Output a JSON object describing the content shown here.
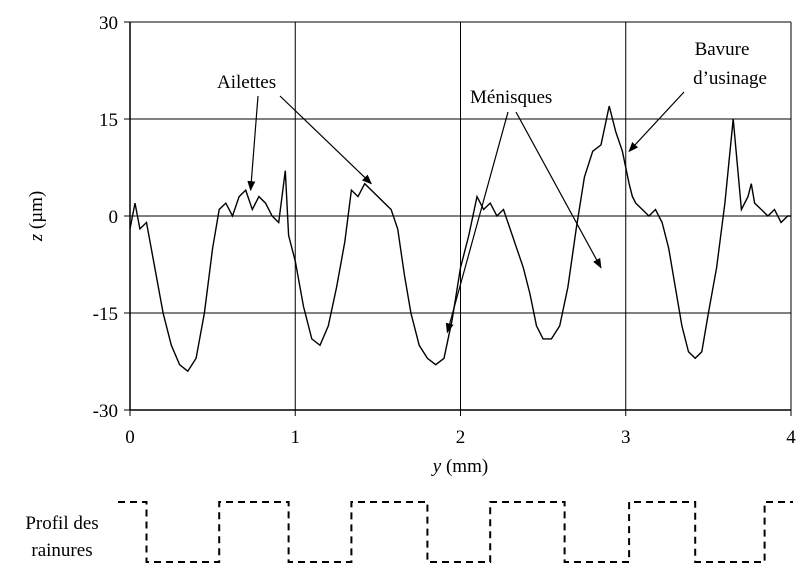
{
  "chart_data": {
    "type": "line",
    "xlabel_var": "y",
    "xlabel_unit": " (mm)",
    "ylabel_var": "z",
    "ylabel_unit": " (µm)",
    "xlim": [
      0,
      4
    ],
    "ylim": [
      -30,
      30
    ],
    "x_ticks": [
      0,
      1,
      2,
      3,
      4
    ],
    "y_ticks": [
      30,
      15,
      0,
      -15,
      -30
    ],
    "grid": true,
    "series": [
      {
        "x": [
          0.0,
          0.03,
          0.06,
          0.1,
          0.15,
          0.2,
          0.25,
          0.3,
          0.35,
          0.4,
          0.45,
          0.5,
          0.54,
          0.58,
          0.62,
          0.66,
          0.7,
          0.74,
          0.78,
          0.82,
          0.86,
          0.9,
          0.94,
          0.96,
          1.0,
          1.05,
          1.1,
          1.15,
          1.2,
          1.25,
          1.3,
          1.34,
          1.38,
          1.42,
          1.46,
          1.5,
          1.54,
          1.58,
          1.62,
          1.66,
          1.7,
          1.75,
          1.8,
          1.85,
          1.9,
          1.95,
          2.0,
          2.05,
          2.1,
          2.14,
          2.18,
          2.22,
          2.26,
          2.3,
          2.34,
          2.38,
          2.42,
          2.46,
          2.5,
          2.55,
          2.6,
          2.65,
          2.7,
          2.75,
          2.8,
          2.85,
          2.9,
          2.94,
          2.98,
          3.02,
          3.04,
          3.06,
          3.1,
          3.14,
          3.18,
          3.22,
          3.26,
          3.3,
          3.34,
          3.38,
          3.42,
          3.46,
          3.5,
          3.55,
          3.6,
          3.65,
          3.7,
          3.74,
          3.76,
          3.78,
          3.82,
          3.86,
          3.9,
          3.94,
          3.98,
          4.0
        ],
        "y": [
          -2,
          2,
          -2,
          -1,
          -8,
          -15,
          -20,
          -23,
          -24,
          -22,
          -15,
          -5,
          1,
          2,
          0,
          3,
          4,
          1,
          3,
          2,
          0,
          -1,
          7,
          -3,
          -7,
          -14,
          -19,
          -20,
          -17,
          -11,
          -4,
          4,
          3,
          5,
          4,
          3,
          2,
          1,
          -2,
          -9,
          -15,
          -20,
          -22,
          -23,
          -22,
          -16,
          -8,
          -3,
          3,
          1,
          2,
          0,
          1,
          -2,
          -5,
          -8,
          -12,
          -17,
          -19,
          -19,
          -17,
          -11,
          -2,
          6,
          10,
          11,
          17,
          13,
          10,
          5,
          3,
          2,
          1,
          0,
          1,
          -1,
          -5,
          -11,
          -17,
          -21,
          -22,
          -21,
          -15,
          -8,
          2,
          15,
          1,
          3,
          5,
          2,
          1,
          0,
          1,
          -1,
          0,
          0
        ]
      }
    ],
    "annotations": [
      {
        "text": "Ailettes",
        "target_x": [
          0.73,
          1.46
        ],
        "target_y": [
          4,
          5
        ]
      },
      {
        "text": "Ménisques",
        "target_x": [
          1.92,
          2.85
        ],
        "target_y": [
          -18,
          -8
        ]
      },
      {
        "lines": [
          "Bavure",
          "d’usinage"
        ],
        "target_x": 3.02,
        "target_y": 10
      }
    ]
  },
  "groove_profile": {
    "label_lines": [
      "Profil des",
      "rainures"
    ],
    "segments_x": [
      0.1,
      0.54,
      0.96,
      1.34,
      1.8,
      2.18,
      2.63,
      3.02,
      3.42,
      3.84
    ]
  }
}
